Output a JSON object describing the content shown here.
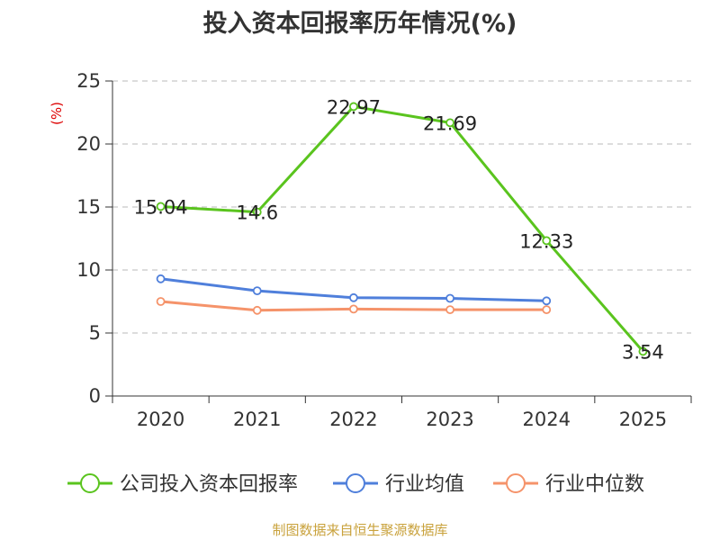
{
  "chart_data": {
    "type": "line",
    "title": "投入资本回报率历年情况(%)",
    "ylabel": "(%)",
    "xlabel": "",
    "ylim": [
      0,
      25
    ],
    "yticks": [
      "0",
      "5",
      "10",
      "15",
      "20",
      "25"
    ],
    "categories": [
      "2020",
      "2021",
      "2022",
      "2023",
      "2024",
      "2025"
    ],
    "grid": true,
    "legend_position": "bottom",
    "series": [
      {
        "name": "公司投入资本回报率",
        "color": "#5ac41e",
        "values": [
          15.04,
          14.6,
          22.97,
          21.69,
          12.33,
          3.54
        ],
        "labels": [
          "15.04",
          "14.6",
          "22.97",
          "21.69",
          "12.33",
          "3.54"
        ],
        "show_labels": true
      },
      {
        "name": "行业均值",
        "color": "#4f7fdb",
        "values": [
          9.3,
          8.35,
          7.8,
          7.75,
          7.55,
          null
        ],
        "show_labels": false
      },
      {
        "name": "行业中位数",
        "color": "#f5936a",
        "values": [
          7.5,
          6.8,
          6.9,
          6.85,
          6.85,
          null
        ],
        "show_labels": false
      }
    ]
  },
  "footer": {
    "source": "制图数据来自恒生聚源数据库"
  }
}
